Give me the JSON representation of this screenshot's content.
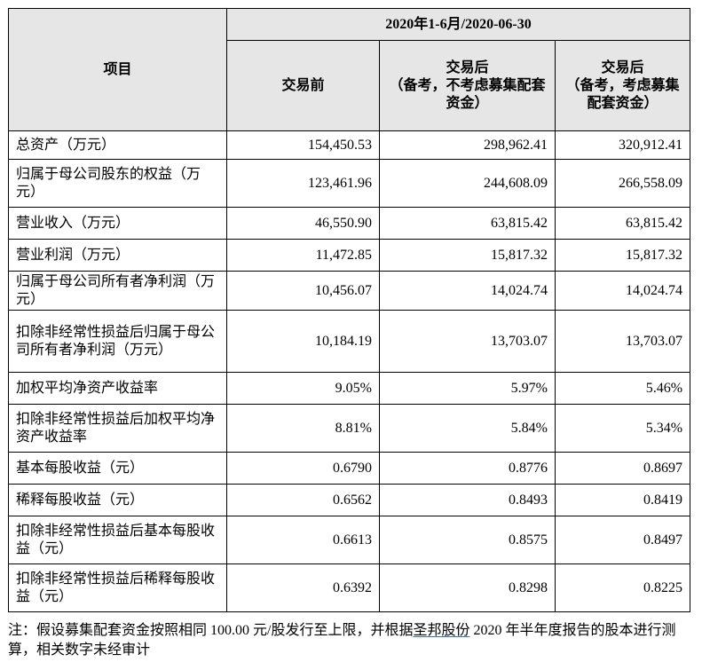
{
  "table": {
    "period_header": "2020年1-6月/2020-06-30",
    "item_header": "项目",
    "col_before": "交易前",
    "col_after_no_fund": "交易后\n（备考，不考虑募集配套资金）",
    "col_after_fund": "交易后\n（备考，考虑募集配套资金）",
    "rows": [
      {
        "label": "总资产（万元）",
        "before": "154,450.53",
        "after_no": "298,962.41",
        "after_yes": "320,912.41"
      },
      {
        "label": "归属于母公司股东的权益（万元）",
        "before": "123,461.96",
        "after_no": "244,608.09",
        "after_yes": "266,558.09"
      },
      {
        "label": "营业收入（万元）",
        "before": "46,550.90",
        "after_no": "63,815.42",
        "after_yes": "63,815.42"
      },
      {
        "label": "营业利润（万元）",
        "before": "11,472.85",
        "after_no": "15,817.32",
        "after_yes": "15,817.32"
      },
      {
        "label": "归属于母公司所有者净利润（万元）",
        "before": "10,456.07",
        "after_no": "14,024.74",
        "after_yes": "14,024.74"
      },
      {
        "label": "扣除非经常性损益后归属于母公司所有者净利润（万元）",
        "before": "10,184.19",
        "after_no": "13,703.07",
        "after_yes": "13,703.07"
      },
      {
        "label": "加权平均净资产收益率",
        "before": "9.05%",
        "after_no": "5.97%",
        "after_yes": "5.46%"
      },
      {
        "label": "扣除非经常性损益后加权平均净资产收益率",
        "before": "8.81%",
        "after_no": "5.84%",
        "after_yes": "5.34%"
      },
      {
        "label": "基本每股收益（元）",
        "before": "0.6790",
        "after_no": "0.8776",
        "after_yes": "0.8697"
      },
      {
        "label": "稀释每股收益（元）",
        "before": "0.6562",
        "after_no": "0.8493",
        "after_yes": "0.8419"
      },
      {
        "label": "扣除非经常性损益后基本每股收益（元）",
        "before": "0.6613",
        "after_no": "0.8575",
        "after_yes": "0.8497"
      },
      {
        "label": "扣除非经常性损益后稀释每股收益（元）",
        "before": "0.6392",
        "after_no": "0.8298",
        "after_yes": "0.8225"
      }
    ]
  },
  "note": {
    "prefix": "注：假设募集配套资金按照相同 100.00 元/股发行至上限，并根据",
    "link": "圣邦股份",
    "suffix": " 2020 年半年度报告的股本进行测算，相关数字未经审计"
  }
}
